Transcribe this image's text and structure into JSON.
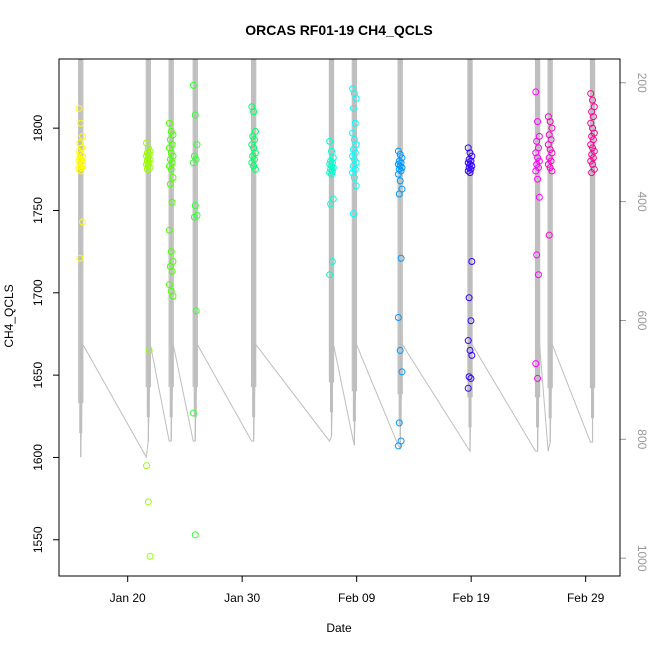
{
  "chart_data": {
    "type": "scatter",
    "title": "ORCAS RF01-19 CH4_QCLS",
    "xlabel": "Date",
    "ylabel": "CH4_QCLS",
    "xlim": [
      "2016-01-14",
      "2016-03-03"
    ],
    "ylim": [
      1528,
      1842
    ],
    "y2lim": [
      1030,
      160
    ],
    "x_ticks": [
      {
        "date": "2016-01-20",
        "label": "Jan 20"
      },
      {
        "date": "2016-01-30",
        "label": "Jan 30"
      },
      {
        "date": "2016-02-09",
        "label": "Feb 09"
      },
      {
        "date": "2016-02-19",
        "label": "Feb 19"
      },
      {
        "date": "2016-02-29",
        "label": "Feb 29"
      }
    ],
    "y_ticks": [
      1550,
      1600,
      1650,
      1700,
      1750,
      1800
    ],
    "y2_ticks": [
      200,
      400,
      600,
      800,
      1000
    ],
    "grid": false,
    "legend": "none",
    "flight_line_color": "#bebebe",
    "flights": [
      {
        "date": "2016-01-15.9",
        "color": "#ffff00",
        "values": [
          1812,
          1803,
          1795,
          1791,
          1788,
          1786,
          1784,
          1783,
          1782,
          1781,
          1780,
          1779,
          1778,
          1777,
          1776,
          1775,
          1774,
          1743,
          1721
        ]
      },
      {
        "date": "2016-01-21.8",
        "color": "#99ff00",
        "values": [
          1791,
          1788,
          1786,
          1785,
          1784,
          1783,
          1782,
          1781,
          1780,
          1779,
          1778,
          1777,
          1776,
          1775,
          1665,
          1595,
          1573,
          1540
        ]
      },
      {
        "date": "2016-01-23.8",
        "color": "#4dff00",
        "values": [
          1803,
          1798,
          1796,
          1793,
          1790,
          1788,
          1785,
          1783,
          1781,
          1779,
          1777,
          1775,
          1770,
          1766,
          1755,
          1738,
          1725,
          1719,
          1716,
          1713,
          1705,
          1701,
          1698
        ]
      },
      {
        "date": "2016-01-25.9",
        "color": "#33ff33",
        "values": [
          1826,
          1808,
          1790,
          1783,
          1781,
          1779,
          1753,
          1747,
          1746,
          1689,
          1627,
          1553
        ]
      },
      {
        "date": "2016-01-31.0",
        "color": "#00ff66",
        "values": [
          1813,
          1810,
          1798,
          1795,
          1793,
          1790,
          1788,
          1785,
          1783,
          1781,
          1779,
          1777,
          1775
        ]
      },
      {
        "date": "2016-02-06.8",
        "color": "#00ffcc",
        "values": [
          1792,
          1786,
          1782,
          1780,
          1779,
          1778,
          1777,
          1776,
          1775,
          1774,
          1773,
          1772,
          1757,
          1754,
          1719,
          1711
        ]
      },
      {
        "date": "2016-02-08.8",
        "color": "#00ffff",
        "values": [
          1824,
          1821,
          1818,
          1812,
          1803,
          1797,
          1793,
          1790,
          1787,
          1785,
          1783,
          1781,
          1779,
          1777,
          1775,
          1773,
          1770,
          1765,
          1748
        ]
      },
      {
        "date": "2016-02-12.8",
        "color": "#0099ff",
        "values": [
          1786,
          1784,
          1782,
          1780,
          1779,
          1778,
          1777,
          1776,
          1775,
          1774,
          1772,
          1768,
          1763,
          1760,
          1721,
          1685,
          1665,
          1652,
          1621,
          1610,
          1607
        ]
      },
      {
        "date": "2016-02-18.9",
        "color": "#3300ff",
        "values": [
          1788,
          1785,
          1783,
          1781,
          1780,
          1779,
          1778,
          1777,
          1776,
          1775,
          1774,
          1773,
          1719,
          1697,
          1683,
          1671,
          1665,
          1662,
          1649,
          1648,
          1642
        ]
      },
      {
        "date": "2016-02-24.8",
        "color": "#ff00ff",
        "values": [
          1822,
          1804,
          1795,
          1792,
          1788,
          1785,
          1782,
          1780,
          1778,
          1776,
          1774,
          1769,
          1758,
          1723,
          1711,
          1657,
          1648
        ]
      },
      {
        "date": "2016-02-25.9",
        "color": "#ff00cc",
        "values": [
          1807,
          1804,
          1800,
          1796,
          1793,
          1790,
          1787,
          1785,
          1782,
          1780,
          1778,
          1776,
          1774,
          1735
        ]
      },
      {
        "date": "2016-02-29.6",
        "color": "#ff0099",
        "values": [
          1821,
          1817,
          1813,
          1810,
          1807,
          1803,
          1800,
          1797,
          1795,
          1793,
          1790,
          1788,
          1786,
          1784,
          1782,
          1780,
          1778,
          1775,
          1773
        ]
      }
    ]
  }
}
